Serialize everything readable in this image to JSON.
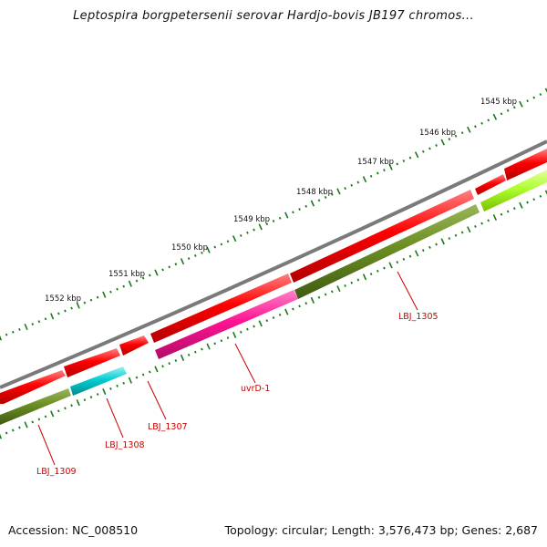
{
  "title": "Leptospira borgpetersenii serovar Hardjo-bovis JB197 chromos...",
  "footer": {
    "accession": "Accession: NC_008510",
    "summary": "Topology: circular; Length: 3,576,473 bp; Genes: 2,687"
  },
  "ruler": {
    "unit": "kbp",
    "labels": [
      "1545 kbp",
      "1546 kbp",
      "1547 kbp",
      "1548 kbp",
      "1549 kbp",
      "1550 kbp",
      "1551 kbp",
      "1552 kbp"
    ]
  },
  "genes": [
    {
      "name": "LBJ_1305",
      "strand": "minus",
      "color": "#6b8e23"
    },
    {
      "name": "uvrD-1",
      "strand": "minus",
      "color": "#ff1493"
    },
    {
      "name": "LBJ_1307",
      "strand": "minus",
      "color": "#ff0000"
    },
    {
      "name": "LBJ_1308",
      "strand": "minus",
      "color": "#00ced1"
    },
    {
      "name": "LBJ_1309",
      "strand": "minus",
      "color": "#6b8e23"
    }
  ],
  "colors": {
    "backbone": "#808080",
    "cds_plus": "#ff0000",
    "tick": "#1a7a1a",
    "label": "#cc0000",
    "lime": "#adff2f"
  }
}
